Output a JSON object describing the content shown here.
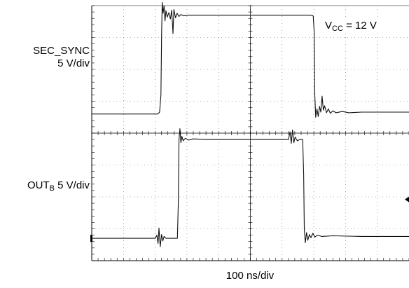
{
  "chart_data": {
    "type": "line",
    "title": "",
    "xlabel": "100 ns/div",
    "x_units": "ns",
    "x_per_div": 100,
    "y_units": "V",
    "xlim": [
      0,
      1000
    ],
    "grid": true,
    "grid_divisions": {
      "x": 10,
      "y": 8
    },
    "annotations": [
      {
        "name": "vcc",
        "text_main": "V",
        "text_sub": "CC",
        "text_tail": " = 12 V"
      }
    ],
    "series": [
      {
        "label_main": "SEC_SYNC",
        "label_scale": "5 V/div",
        "volts_per_div": 5,
        "ylim": [
          0,
          20
        ],
        "points": [
          [
            0,
            0
          ],
          [
            208,
            0
          ],
          [
            214,
            0.3
          ],
          [
            218,
            3
          ],
          [
            220,
            12
          ],
          [
            222,
            17.5
          ],
          [
            225,
            15.8
          ],
          [
            228,
            17.0
          ],
          [
            231,
            14.6
          ],
          [
            234,
            16.2
          ],
          [
            238,
            15.2
          ],
          [
            243,
            15.9
          ],
          [
            248,
            14.9
          ],
          [
            252,
            16.3
          ],
          [
            256,
            12.6
          ],
          [
            259,
            16.4
          ],
          [
            264,
            15.1
          ],
          [
            269,
            15.8
          ],
          [
            275,
            15.3
          ],
          [
            281,
            15.6
          ],
          [
            290,
            15.4
          ],
          [
            305,
            15.5
          ],
          [
            400,
            15.5
          ],
          [
            560,
            15.5
          ],
          [
            690,
            15.5
          ],
          [
            698,
            15.4
          ],
          [
            701,
            13
          ],
          [
            703,
            3
          ],
          [
            706,
            -0.5
          ],
          [
            710,
            0.8
          ],
          [
            714,
            -0.4
          ],
          [
            718,
            1.2
          ],
          [
            722,
            0.3
          ],
          [
            726,
            2.8
          ],
          [
            730,
            0.6
          ],
          [
            734,
            1.3
          ],
          [
            740,
            0.2
          ],
          [
            746,
            0.8
          ],
          [
            752,
            0.1
          ],
          [
            760,
            0.5
          ],
          [
            770,
            0.2
          ],
          [
            790,
            0.4
          ],
          [
            810,
            0.2
          ],
          [
            850,
            0.3
          ],
          [
            900,
            0.3
          ],
          [
            1000,
            0.3
          ]
        ]
      },
      {
        "label_main": "OUT",
        "label_sub": "B",
        "label_tail": " 5 V/div",
        "volts_per_div": 5,
        "ylim": [
          0,
          20
        ],
        "points": [
          [
            0,
            0
          ],
          [
            200,
            0
          ],
          [
            205,
            0.5
          ],
          [
            209,
            -0.8
          ],
          [
            212,
            1.6
          ],
          [
            216,
            -1.3
          ],
          [
            220,
            0.6
          ],
          [
            224,
            -0.4
          ],
          [
            228,
            0.3
          ],
          [
            234,
            0
          ],
          [
            270,
            0
          ],
          [
            273,
            6
          ],
          [
            275,
            15.5
          ],
          [
            278,
            17.2
          ],
          [
            281,
            15.0
          ],
          [
            284,
            16.0
          ],
          [
            288,
            15.3
          ],
          [
            295,
            15.7
          ],
          [
            305,
            15.4
          ],
          [
            320,
            15.6
          ],
          [
            360,
            15.5
          ],
          [
            500,
            15.5
          ],
          [
            620,
            15.5
          ],
          [
            625,
            16.7
          ],
          [
            629,
            14.9
          ],
          [
            633,
            17.0
          ],
          [
            637,
            15.0
          ],
          [
            641,
            15.9
          ],
          [
            648,
            15.3
          ],
          [
            656,
            15.5
          ],
          [
            665,
            15.5
          ],
          [
            668,
            10
          ],
          [
            670,
            1.5
          ],
          [
            673,
            -0.7
          ],
          [
            677,
            0.9
          ],
          [
            681,
            -0.3
          ],
          [
            686,
            0.6
          ],
          [
            691,
            0.1
          ],
          [
            697,
            0.8
          ],
          [
            703,
            0.2
          ],
          [
            712,
            0.5
          ],
          [
            725,
            0.3
          ],
          [
            760,
            0.4
          ],
          [
            850,
            0.3
          ],
          [
            1000,
            0.3
          ]
        ]
      }
    ]
  }
}
